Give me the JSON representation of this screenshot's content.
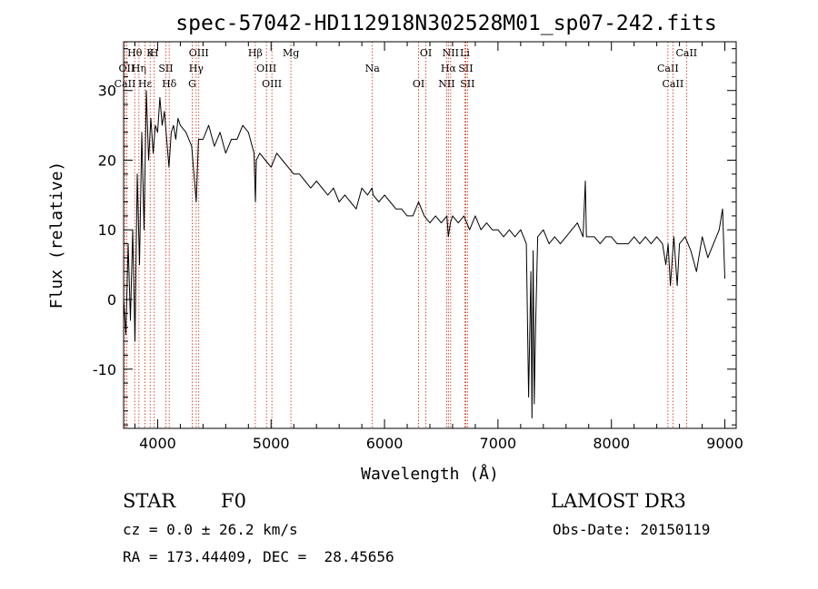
{
  "chart_data": {
    "type": "line",
    "title": "spec-57042-HD112918N302528M01_sp07-242.fits",
    "xlabel": "Wavelength (Å)",
    "ylabel": "Flux (relative)",
    "xlim": [
      3700,
      9100
    ],
    "ylim": [
      -18.5,
      37
    ],
    "x_ticks": [
      4000,
      5000,
      6000,
      7000,
      8000,
      9000
    ],
    "y_ticks": [
      -10,
      0,
      10,
      20,
      30
    ],
    "grid": false,
    "line_color": "#000000",
    "marker_color": "#cc2200",
    "series": [
      {
        "name": "",
        "x": [
          3700,
          3720,
          3740,
          3760,
          3780,
          3800,
          3820,
          3840,
          3860,
          3880,
          3900,
          3920,
          3940,
          3960,
          3980,
          4000,
          4020,
          4040,
          4060,
          4080,
          4100,
          4120,
          4140,
          4160,
          4180,
          4200,
          4250,
          4300,
          4340,
          4360,
          4400,
          4450,
          4500,
          4550,
          4600,
          4650,
          4700,
          4750,
          4800,
          4850,
          4862,
          4870,
          4900,
          4950,
          5000,
          5050,
          5100,
          5150,
          5200,
          5250,
          5300,
          5350,
          5400,
          5450,
          5500,
          5550,
          5600,
          5650,
          5700,
          5750,
          5800,
          5850,
          5890,
          5900,
          5950,
          6000,
          6050,
          6100,
          6150,
          6200,
          6250,
          6300,
          6350,
          6400,
          6450,
          6500,
          6550,
          6563,
          6580,
          6600,
          6650,
          6700,
          6750,
          6800,
          6850,
          6900,
          6950,
          7000,
          7050,
          7100,
          7150,
          7200,
          7250,
          7270,
          7290,
          7300,
          7310,
          7320,
          7330,
          7350,
          7400,
          7450,
          7500,
          7550,
          7600,
          7650,
          7700,
          7750,
          7770,
          7780,
          7800,
          7850,
          7900,
          7950,
          8000,
          8050,
          8100,
          8150,
          8200,
          8250,
          8300,
          8350,
          8400,
          8450,
          8480,
          8500,
          8520,
          8550,
          8580,
          8600,
          8650,
          8700,
          8750,
          8800,
          8850,
          8900,
          8950,
          8980,
          9000
        ],
        "y": [
          0,
          -5,
          8,
          -3,
          10,
          -6,
          18,
          5,
          24,
          10,
          30,
          20,
          26,
          21,
          25,
          24,
          29,
          25,
          27,
          23,
          19,
          24,
          25,
          23,
          26,
          25,
          24,
          22,
          14,
          23,
          23,
          25,
          22,
          24,
          21,
          23,
          23,
          25,
          24,
          21,
          14,
          20,
          21,
          20,
          19,
          21,
          20,
          19,
          18,
          18,
          17,
          16,
          17,
          16,
          15,
          16,
          14,
          15,
          14,
          13,
          16,
          15,
          16,
          15,
          14,
          15,
          14,
          13,
          13,
          12,
          12,
          14,
          12,
          11,
          12,
          11,
          12,
          9,
          11,
          12,
          11,
          12,
          10,
          12,
          10,
          11,
          10,
          10,
          9,
          10,
          9,
          10,
          8,
          -14,
          4,
          -17,
          7,
          -15,
          -5,
          9,
          10,
          8,
          9,
          8,
          9,
          10,
          11,
          9,
          17,
          9,
          9,
          9,
          8,
          9,
          9,
          8,
          8,
          8,
          9,
          8,
          9,
          8,
          9,
          8,
          5,
          8,
          2,
          9,
          2,
          8,
          9,
          7,
          4,
          9,
          6,
          8,
          10,
          13,
          3
        ]
      }
    ],
    "line_markers": [
      {
        "label": "Hθ",
        "x": 3798
      },
      {
        "label": "OII",
        "x": 3727
      },
      {
        "label": "CaII",
        "x": 3712
      },
      {
        "label": "K",
        "x": 3934
      },
      {
        "label": "Hη",
        "x": 3835
      },
      {
        "label": "Hε",
        "x": 3889
      },
      {
        "label": "H",
        "x": 3970
      },
      {
        "label": "SII",
        "x": 4072
      },
      {
        "label": "Hδ",
        "x": 4102
      },
      {
        "label": "OIII",
        "x": 4363
      },
      {
        "label": "Hγ",
        "x": 4340
      },
      {
        "label": "G",
        "x": 4305
      },
      {
        "label": "Hβ",
        "x": 4861
      },
      {
        "label": "OIII",
        "x": 4959
      },
      {
        "label": "OIII",
        "x": 5007
      },
      {
        "label": "Mg",
        "x": 5175
      },
      {
        "label": "Na",
        "x": 5893
      },
      {
        "label": "OI",
        "x": 6300
      },
      {
        "label": "OI",
        "x": 6364
      },
      {
        "label": "Hα",
        "x": 6563
      },
      {
        "label": "NII",
        "x": 6548
      },
      {
        "label": "NII",
        "x": 6583
      },
      {
        "label": "SII",
        "x": 6716
      },
      {
        "label": "SII",
        "x": 6731
      },
      {
        "label": "Li",
        "x": 6708
      },
      {
        "label": "CaII",
        "x": 8498
      },
      {
        "label": "CaII",
        "x": 8542
      },
      {
        "label": "CaII",
        "x": 8662
      }
    ]
  },
  "info": {
    "object_type": "STAR",
    "subclass": "F0",
    "survey": "LAMOST DR3",
    "redshift": "cz = 0.0 ± 26.2 km/s",
    "obs_date": "Obs-Date: 20150119",
    "coords": "RA = 173.44409, DEC =  28.45656"
  }
}
